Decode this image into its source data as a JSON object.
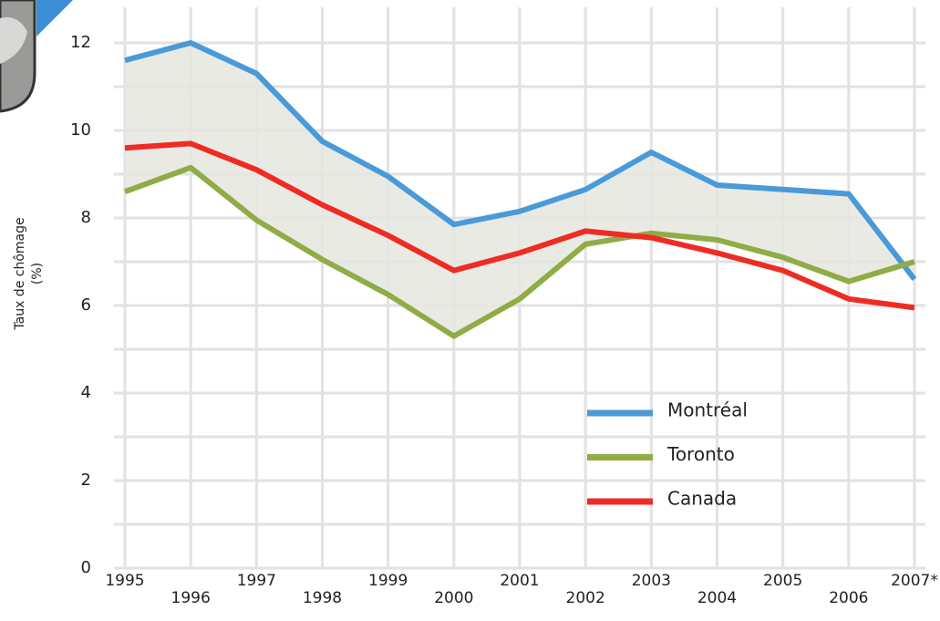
{
  "chart_data": {
    "type": "line",
    "y_label": "Taux de chômage",
    "y_label_unit": "(%)",
    "categories": [
      "1995",
      "1996",
      "1997",
      "1998",
      "1999",
      "2000",
      "2001",
      "2002",
      "2003",
      "2004",
      "2005",
      "2006",
      "2007*"
    ],
    "series": [
      {
        "name": "Montréal",
        "color": "#4a9ad8",
        "values": [
          11.6,
          12.0,
          11.3,
          9.75,
          8.95,
          7.85,
          8.15,
          8.65,
          9.5,
          8.75,
          8.65,
          8.55,
          6.6
        ]
      },
      {
        "name": "Toronto",
        "color": "#8fac45",
        "values": [
          8.6,
          9.15,
          7.95,
          7.05,
          6.25,
          5.3,
          6.15,
          7.4,
          7.65,
          7.5,
          7.1,
          6.55,
          7.0
        ]
      },
      {
        "name": "Canada",
        "color": "#ee2c24",
        "values": [
          9.6,
          9.7,
          9.1,
          8.3,
          7.6,
          6.8,
          7.2,
          7.7,
          7.55,
          7.2,
          6.8,
          6.15,
          5.95
        ]
      }
    ],
    "band_color": "#e6e6e1",
    "ylim": [
      0,
      12
    ],
    "yticks": [
      0,
      2,
      4,
      6,
      8,
      10,
      12
    ],
    "minor_yticks": [
      1,
      3,
      5,
      7,
      9,
      11
    ],
    "grid": true
  }
}
